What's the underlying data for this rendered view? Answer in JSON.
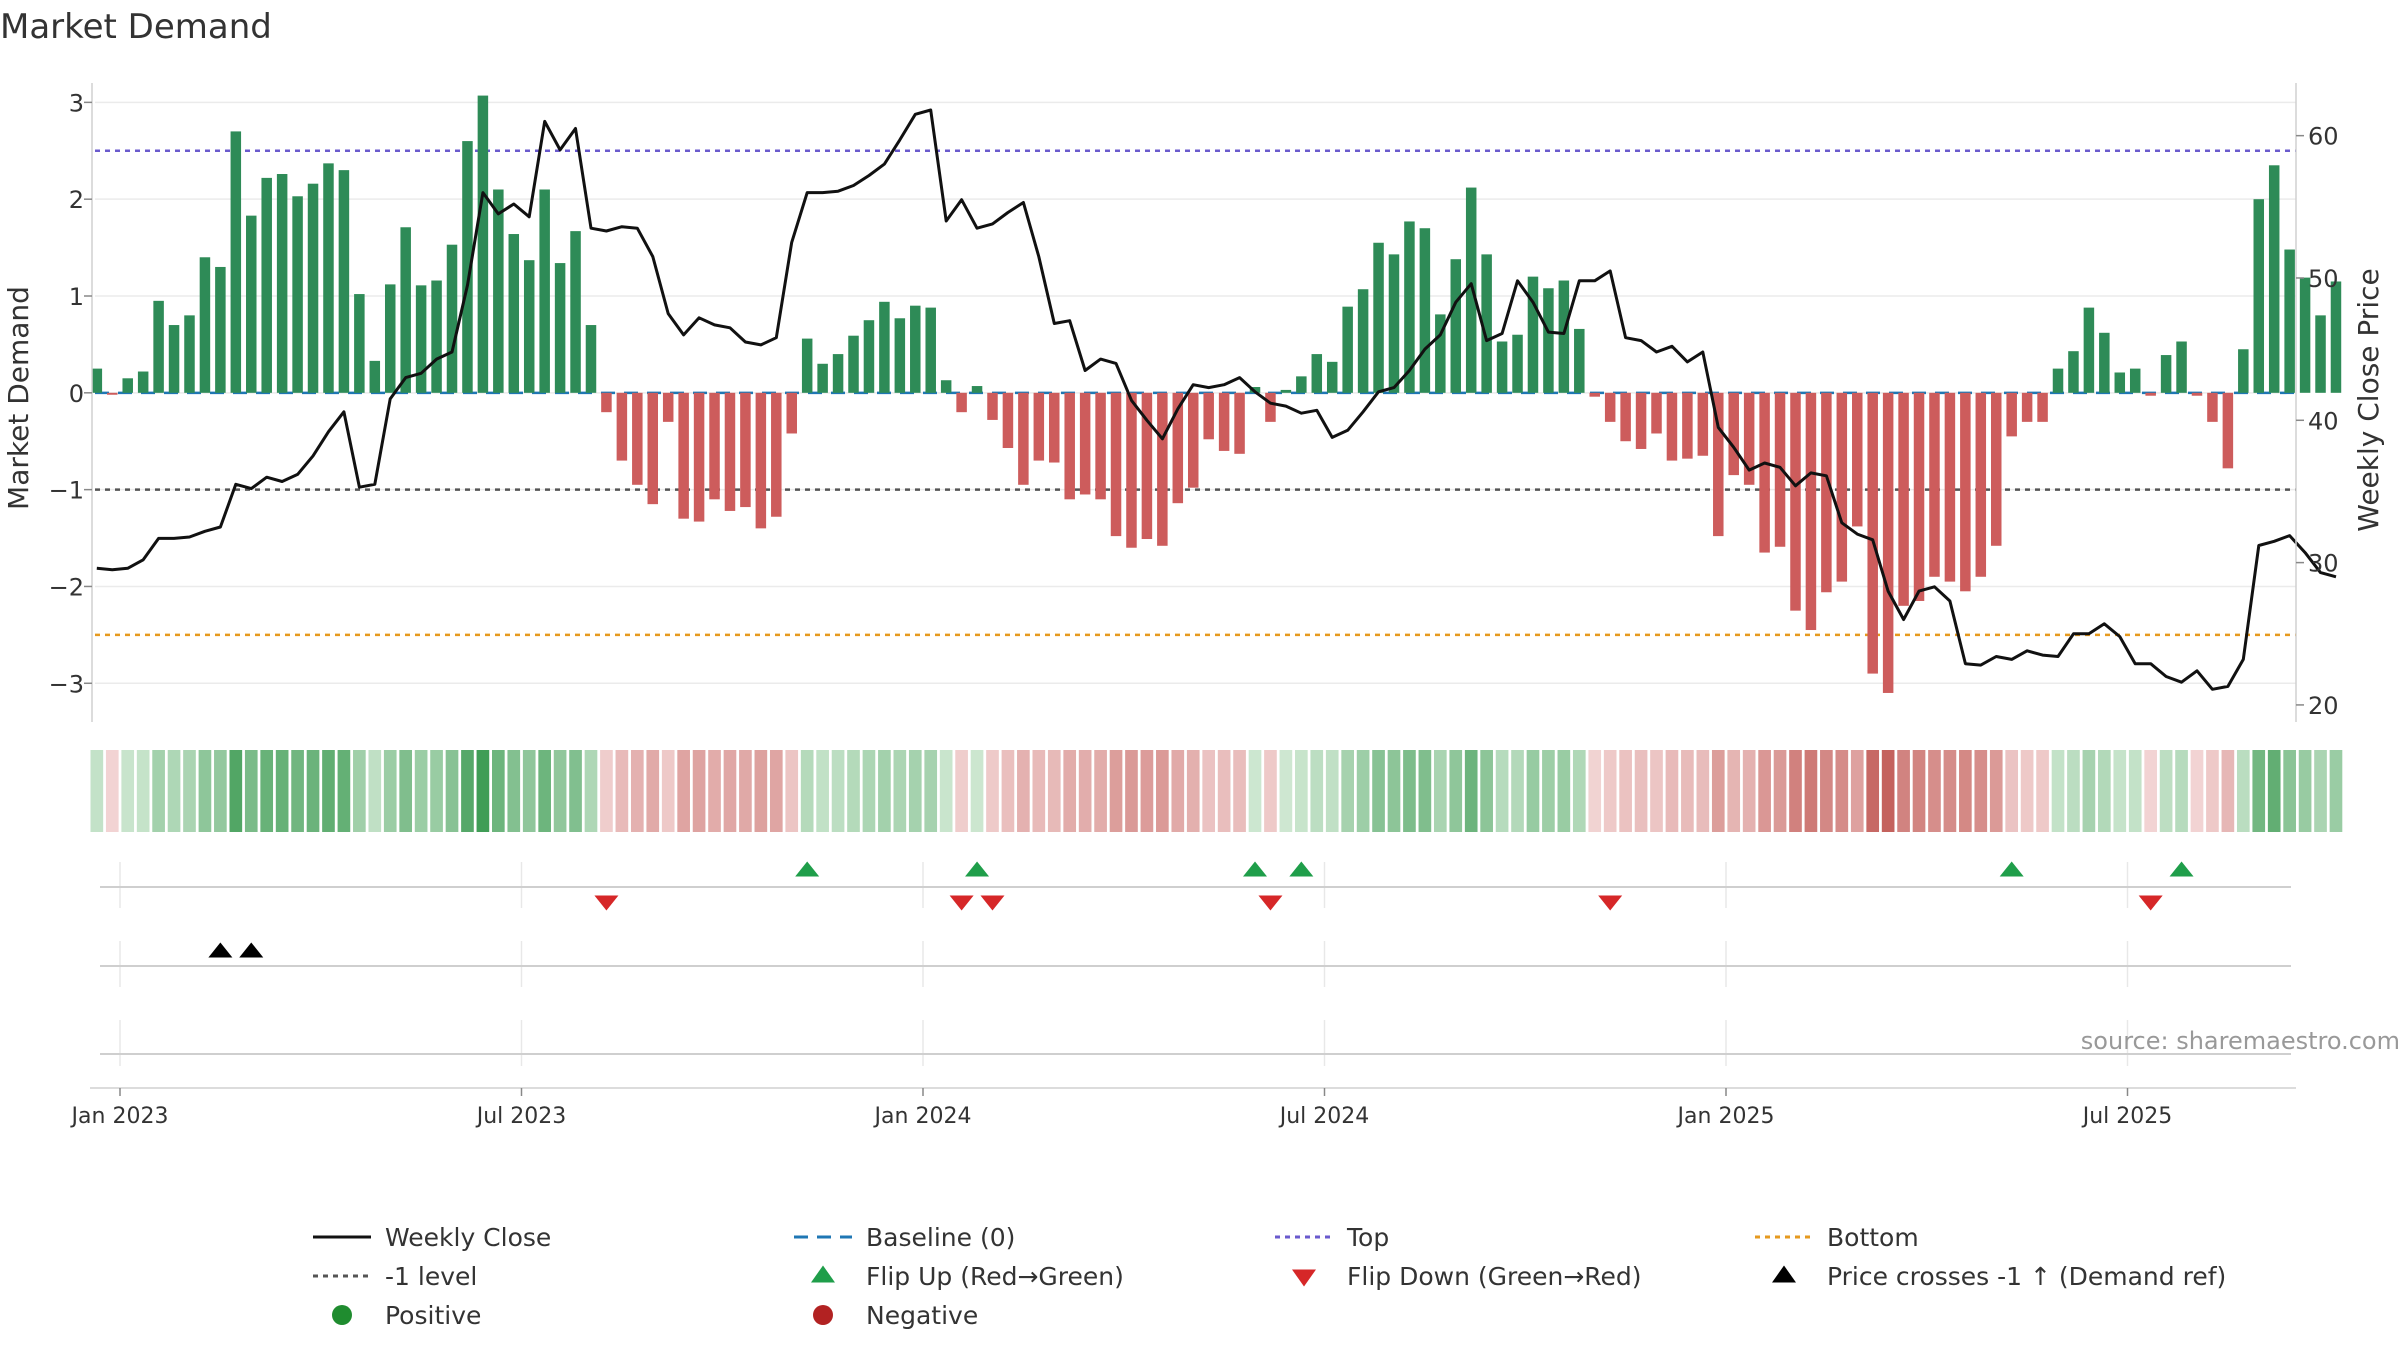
{
  "chart_data": {
    "type": "bar",
    "title": "Market Demand",
    "ylabel_left": "Market Demand",
    "ylabel_right": "Weekly Close Price",
    "source": "source: sharemaestro.com",
    "ylim_left": [
      -3.4,
      3.2
    ],
    "ylim_right": [
      18.8,
      63.7
    ],
    "yticks_left": [
      "3",
      "2",
      "1",
      "0",
      "−1",
      "−2",
      "−3"
    ],
    "yticks_left_values": [
      3,
      2,
      1,
      0,
      -1,
      -2,
      -3
    ],
    "yticks_right": [
      "60",
      "50",
      "40",
      "30",
      "20"
    ],
    "yticks_right_values": [
      60,
      50,
      40,
      30,
      20
    ],
    "xticks": [
      "Jan 2023",
      "Jul 2023",
      "Jan 2024",
      "Jul 2024",
      "Jan 2025",
      "Jul 2025"
    ],
    "xticks_weeks": [
      0,
      26,
      52,
      78,
      104,
      130
    ],
    "x_unit": "weeks since 2023-01-02",
    "reference_lines": {
      "top": 2.5,
      "minus_one": -1,
      "bottom": -2.5,
      "baseline": 0
    },
    "demand_weeks_start": -1.5,
    "demand": [
      0.25,
      -0.02,
      0.15,
      0.22,
      0.95,
      0.7,
      0.8,
      1.4,
      1.3,
      2.7,
      1.83,
      2.22,
      2.26,
      2.03,
      2.16,
      2.37,
      2.3,
      1.02,
      0.33,
      1.12,
      1.71,
      1.11,
      1.16,
      1.53,
      2.6,
      3.07,
      2.1,
      1.64,
      1.37,
      2.1,
      1.34,
      1.67,
      0.7,
      -0.2,
      -0.7,
      -0.95,
      -1.15,
      -0.3,
      -1.3,
      -1.33,
      -1.1,
      -1.22,
      -1.18,
      -1.4,
      -1.28,
      -0.42,
      0.56,
      0.3,
      0.4,
      0.59,
      0.75,
      0.94,
      0.77,
      0.9,
      0.88,
      0.13,
      -0.2,
      0.07,
      -0.28,
      -0.57,
      -0.95,
      -0.7,
      -0.72,
      -1.1,
      -1.05,
      -1.1,
      -1.48,
      -1.6,
      -1.51,
      -1.58,
      -1.14,
      -0.98,
      -0.48,
      -0.6,
      -0.63,
      0.06,
      -0.3,
      0.03,
      0.17,
      0.4,
      0.32,
      0.89,
      1.07,
      1.55,
      1.43,
      1.77,
      1.7,
      0.81,
      1.38,
      2.12,
      1.43,
      0.53,
      0.6,
      1.2,
      1.08,
      1.16,
      0.66,
      -0.04,
      -0.3,
      -0.5,
      -0.58,
      -0.42,
      -0.7,
      -0.68,
      -0.65,
      -1.48,
      -0.85,
      -0.95,
      -1.65,
      -1.59,
      -2.25,
      -2.45,
      -2.06,
      -1.95,
      -1.38,
      -2.9,
      -3.1,
      -2.2,
      -2.15,
      -1.9,
      -1.95,
      -2.05,
      -1.9,
      -1.58,
      -0.45,
      -0.3,
      -0.3,
      0.25,
      0.43,
      0.88,
      0.62,
      0.21,
      0.25,
      -0.03,
      0.39,
      0.53,
      -0.03,
      -0.3,
      -0.78,
      0.45,
      2.0,
      2.35,
      1.48,
      1.19,
      0.8,
      1.15
    ],
    "weekly_close_weeks_start": -1.5,
    "weekly_close": [
      29.6,
      29.5,
      29.6,
      30.2,
      31.7,
      31.7,
      31.8,
      32.2,
      32.5,
      35.5,
      35.2,
      36.0,
      35.7,
      36.2,
      37.5,
      39.2,
      40.6,
      35.3,
      35.5,
      41.5,
      43.0,
      43.3,
      44.3,
      44.8,
      49.5,
      56.0,
      54.5,
      55.2,
      54.3,
      61.0,
      59.0,
      60.5,
      53.5,
      53.3,
      53.6,
      53.5,
      51.5,
      47.5,
      46.0,
      47.2,
      46.7,
      46.5,
      45.5,
      45.3,
      45.8,
      52.5,
      56.0,
      56.0,
      56.1,
      56.5,
      57.2,
      58.0,
      59.7,
      61.5,
      61.8,
      54.0,
      55.5,
      53.5,
      53.8,
      54.6,
      55.3,
      51.5,
      46.8,
      47.0,
      43.5,
      44.3,
      44.0,
      41.4,
      40.0,
      38.7,
      40.8,
      42.5,
      42.3,
      42.5,
      43.0,
      42.0,
      41.2,
      41.0,
      40.5,
      40.7,
      38.8,
      39.3,
      40.6,
      42.0,
      42.3,
      43.5,
      45.0,
      46.0,
      48.3,
      49.6,
      45.6,
      46.1,
      49.8,
      48.3,
      46.2,
      46.1,
      49.8,
      49.8,
      50.5,
      45.8,
      45.6,
      44.8,
      45.2,
      44.1,
      44.8,
      39.5,
      38.1,
      36.5,
      37.0,
      36.7,
      35.4,
      36.3,
      36.1,
      32.8,
      32.0,
      31.6,
      28.0,
      26.0,
      28.0,
      28.3,
      27.3,
      22.9,
      22.8,
      23.4,
      23.2,
      23.8,
      23.5,
      23.4,
      25.0,
      25.0,
      25.7,
      24.8,
      22.9,
      22.9,
      22.0,
      21.6,
      22.4,
      21.1,
      21.3,
      23.2,
      31.2,
      31.5,
      31.9,
      30.7,
      29.3,
      29.0
    ],
    "heat_colors": {
      "pos_light": "#cfe8d2",
      "pos_dark": "#3f9c55",
      "neg_light": "#f2d4d4",
      "neg_dark": "#c4625d"
    },
    "flip_up_weeks": [
      44.5,
      55.5,
      73.5,
      76.5,
      122.5,
      133.5
    ],
    "flip_down_weeks": [
      31.5,
      54.5,
      56.5,
      74.5,
      96.5,
      131.5
    ],
    "price_cross_weeks": [
      6.5,
      8.5
    ],
    "colors": {
      "bar_pos": "#2e8b57",
      "bar_neg": "#cd5c5c",
      "close": "#111111",
      "baseline": "#1f77b4",
      "top": "#6a5acd",
      "minus_one": "#555555",
      "bottom": "#e69a1f",
      "flip_up": "#1f9e4a",
      "flip_down": "#d62728",
      "cross": "#000000",
      "positive": "#1f8c2f",
      "negative": "#b22222"
    },
    "legend": {
      "weekly_close": "Weekly Close",
      "baseline": "Baseline (0)",
      "top": "Top",
      "bottom": "Bottom",
      "minus_one": "-1 level",
      "flip_up": "Flip Up (Red→Green)",
      "flip_down": "Flip Down (Green→Red)",
      "price_cross": "Price crosses -1 ↑ (Demand ref)",
      "positive": "Positive",
      "negative": "Negative"
    }
  }
}
